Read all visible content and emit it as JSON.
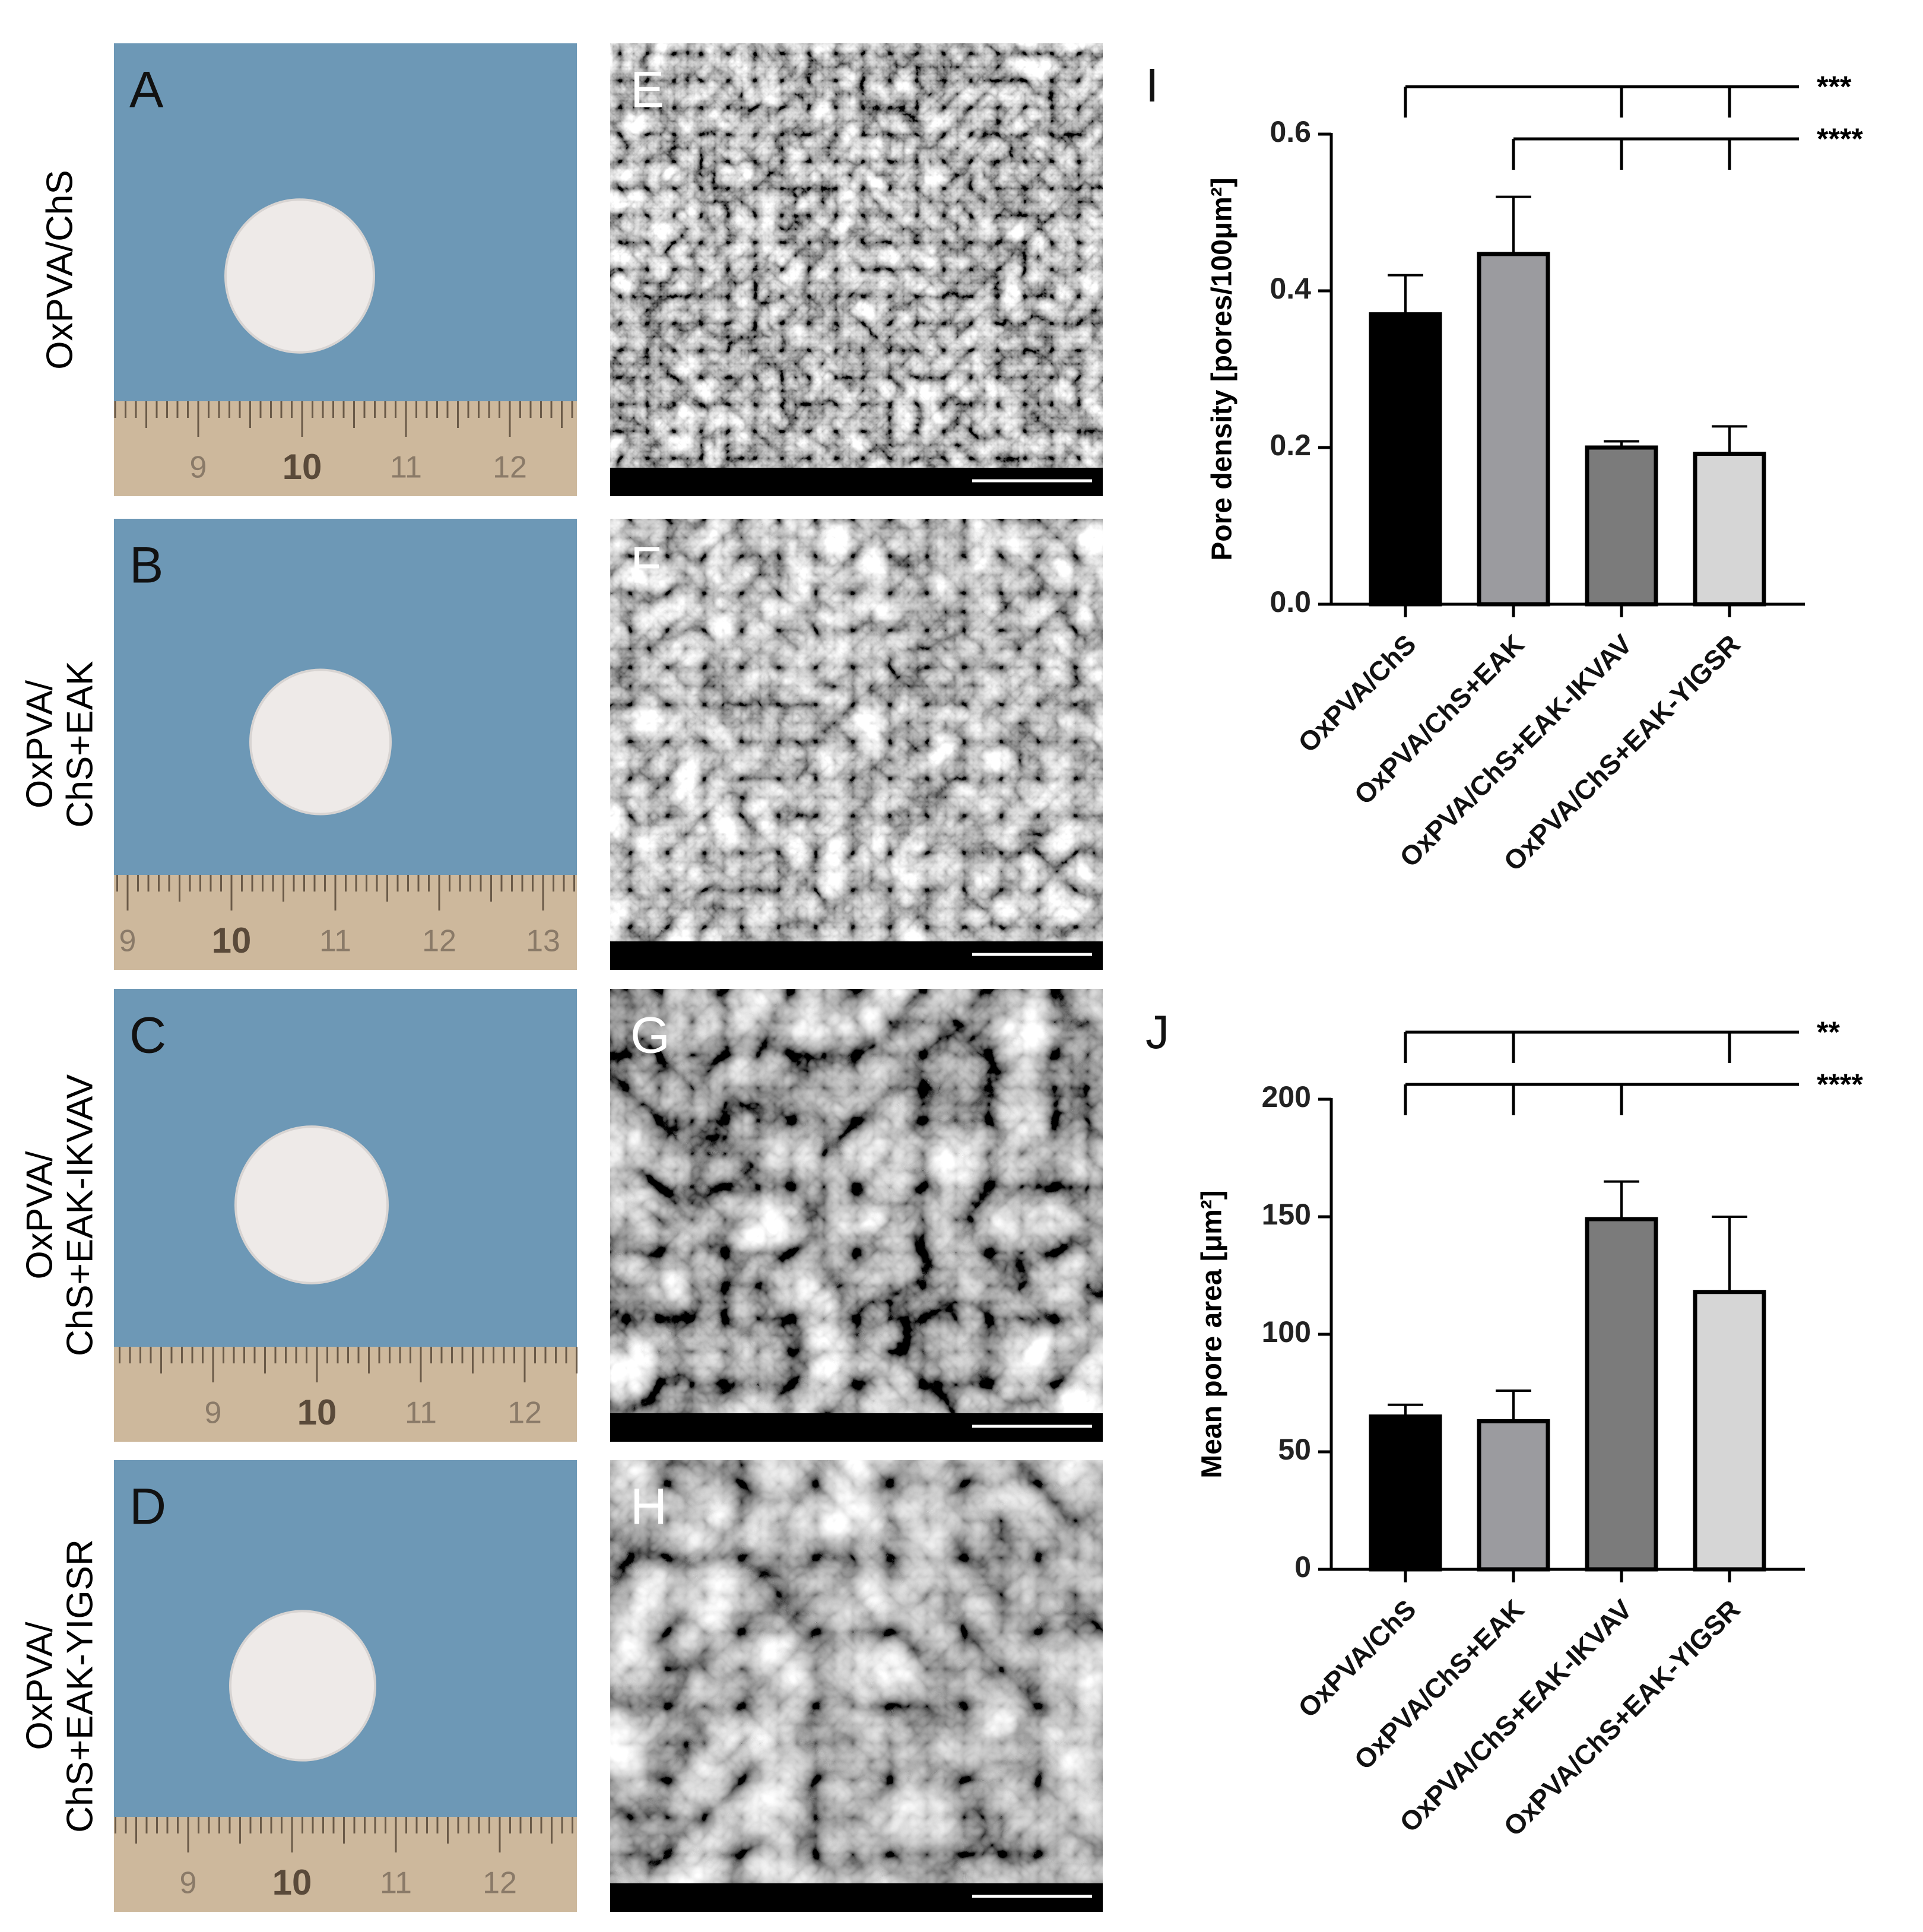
{
  "photos": [
    {
      "letter": "A",
      "label_lines": [
        "OxPVA/ChS"
      ],
      "ruler": [
        "9",
        "10",
        "11",
        "12"
      ]
    },
    {
      "letter": "B",
      "label_lines": [
        "OxPVA/",
        "ChS+EAK"
      ],
      "ruler": [
        "9",
        "10",
        "11",
        "12",
        "13"
      ]
    },
    {
      "letter": "C",
      "label_lines": [
        "OxPVA/",
        "ChS+EAK-IKVAV"
      ],
      "ruler": [
        "9",
        "10",
        "11",
        "12"
      ]
    },
    {
      "letter": "D",
      "label_lines": [
        "OxPVA/",
        "ChS+EAK-YIGSR"
      ],
      "ruler": [
        "9",
        "10",
        "11",
        "12"
      ]
    }
  ],
  "sem": [
    {
      "letter": "E"
    },
    {
      "letter": "F"
    },
    {
      "letter": "G"
    },
    {
      "letter": "H"
    }
  ],
  "chart_data": [
    {
      "type": "bar",
      "panel": "I",
      "y_label": "Pore density [pores/100μm²]",
      "categories": [
        "OxPVA/ChS",
        "OxPVA/ChS+EAK",
        "OxPVA/ChS+EAK-IKVAV",
        "OxPVA/ChS+EAK-YIGSR"
      ],
      "values": [
        0.37,
        0.447,
        0.2,
        0.192
      ],
      "errors": [
        0.05,
        0.073,
        0.008,
        0.035
      ],
      "colors": [
        "#000000",
        "#9b9b9f",
        "#7b7b7b",
        "#d6d6d6"
      ],
      "ylim": [
        0,
        0.6
      ],
      "yticks": [
        {
          "value": 0,
          "label": "0.0"
        },
        0.2,
        0.4,
        0.6
      ],
      "significance": [
        {
          "label": "***",
          "groups": [
            0,
            2,
            3
          ]
        },
        {
          "label": "****",
          "groups": [
            1,
            2,
            3
          ]
        }
      ]
    },
    {
      "type": "bar",
      "panel": "J",
      "y_label": "Mean pore area [μm²]",
      "categories": [
        "OxPVA/ChS",
        "OxPVA/ChS+EAK",
        "OxPVA/ChS+EAK-IKVAV",
        "OxPVA/ChS+EAK-YIGSR"
      ],
      "values": [
        65,
        63,
        149,
        118
      ],
      "errors": [
        5,
        13,
        16,
        32
      ],
      "colors": [
        "#000000",
        "#9b9b9f",
        "#7b7b7b",
        "#d6d6d6"
      ],
      "ylim": [
        0,
        200
      ],
      "yticks": [
        0,
        50,
        100,
        150,
        200
      ],
      "significance": [
        {
          "label": "**",
          "groups": [
            0,
            1,
            3
          ]
        },
        {
          "label": "****",
          "groups": [
            0,
            1,
            2
          ]
        }
      ]
    }
  ]
}
